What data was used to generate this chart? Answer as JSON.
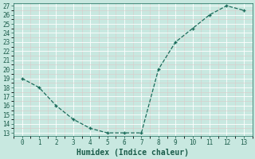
{
  "x": [
    0,
    1,
    2,
    3,
    4,
    5,
    6,
    7,
    8,
    9,
    10,
    11,
    12,
    13
  ],
  "y": [
    19,
    18,
    16,
    14.5,
    13.5,
    13,
    13,
    13,
    20,
    23,
    24.5,
    26,
    27,
    26.5
  ],
  "xlabel": "Humidex (Indice chaleur)",
  "ylim_min": 13,
  "ylim_max": 27,
  "xlim_min": -0.5,
  "xlim_max": 13.5,
  "yticks": [
    13,
    14,
    15,
    16,
    17,
    18,
    19,
    20,
    21,
    22,
    23,
    24,
    25,
    26,
    27
  ],
  "xticks": [
    0,
    1,
    2,
    3,
    4,
    5,
    6,
    7,
    8,
    9,
    10,
    11,
    12,
    13
  ],
  "line_color": "#1a6b5a",
  "marker": "+",
  "bg_color": "#c8e8e0",
  "grid_major_color": "#ffffff",
  "grid_minor_color": "#ddc8c8",
  "tick_label_color": "#1a5c4a",
  "xlabel_color": "#1a5c4a",
  "tick_fontsize": 5.5,
  "xlabel_fontsize": 7.0
}
